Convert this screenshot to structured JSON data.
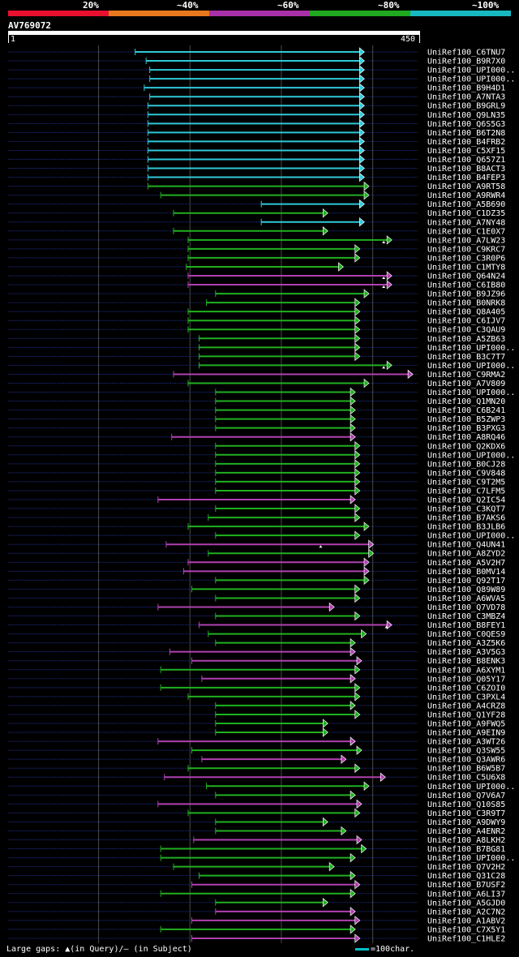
{
  "legend": [
    {
      "label": "20%",
      "color": "#e8102e"
    },
    {
      "label": "~40%",
      "color": "#e8781e"
    },
    {
      "label": "~60%",
      "color": "#a830a8"
    },
    {
      "label": "~80%",
      "color": "#20a820"
    },
    {
      "label": "~100%",
      "color": "#18b8c0"
    }
  ],
  "header": {
    "query": "AV769072",
    "start": "1",
    "end": "450"
  },
  "colors": {
    "cyan": "#30c8d8",
    "green": "#20b020",
    "purple": "#b040b0",
    "dots": "#203090",
    "grid": "#4a4a4a"
  },
  "chart_data": {
    "type": "alignment-map",
    "query": "AV769072",
    "query_range": [
      1,
      450
    ],
    "hits": [
      {
        "name": "UniRef100_C6TNU7",
        "start": 140,
        "end": 390,
        "c": "cyan"
      },
      {
        "name": "UniRef100_B9R7X0",
        "start": 152,
        "end": 390,
        "c": "cyan"
      },
      {
        "name": "UniRef100_UPI000..",
        "start": 156,
        "end": 390,
        "c": "cyan"
      },
      {
        "name": "UniRef100_UPI000..",
        "start": 156,
        "end": 390,
        "c": "cyan"
      },
      {
        "name": "UniRef100_B9H4D1",
        "start": 150,
        "end": 390,
        "c": "cyan"
      },
      {
        "name": "UniRef100_A7NTA3",
        "start": 156,
        "end": 390,
        "c": "cyan"
      },
      {
        "name": "UniRef100_B9GRL9",
        "start": 154,
        "end": 390,
        "c": "cyan"
      },
      {
        "name": "UniRef100_Q9LN35",
        "start": 154,
        "end": 390,
        "c": "cyan"
      },
      {
        "name": "UniRef100_Q6S5G3",
        "start": 154,
        "end": 390,
        "c": "cyan"
      },
      {
        "name": "UniRef100_B6T2N8",
        "start": 154,
        "end": 390,
        "c": "cyan"
      },
      {
        "name": "UniRef100_B4FRB2",
        "start": 154,
        "end": 390,
        "c": "cyan"
      },
      {
        "name": "UniRef100_C5XF15",
        "start": 154,
        "end": 390,
        "c": "cyan"
      },
      {
        "name": "UniRef100_Q657Z1",
        "start": 154,
        "end": 390,
        "c": "cyan"
      },
      {
        "name": "UniRef100_B8ACT3",
        "start": 154,
        "end": 390,
        "c": "cyan"
      },
      {
        "name": "UniRef100_B4FEP3",
        "start": 154,
        "end": 390,
        "c": "cyan"
      },
      {
        "name": "UniRef100_A9RT58",
        "start": 154,
        "end": 395,
        "c": "green"
      },
      {
        "name": "UniRef100_A9RWR4",
        "start": 168,
        "end": 395,
        "c": "green"
      },
      {
        "name": "UniRef100_A5B690",
        "start": 278,
        "end": 390,
        "c": "cyan"
      },
      {
        "name": "UniRef100_C1DZ35",
        "start": 182,
        "end": 350,
        "c": "green"
      },
      {
        "name": "UniRef100_A7NY48",
        "start": 278,
        "end": 390,
        "c": "cyan"
      },
      {
        "name": "UniRef100_C1E0X7",
        "start": 182,
        "end": 350,
        "c": "green"
      },
      {
        "name": "UniRef100_A7LW23",
        "start": 198,
        "end": 420,
        "c": "green",
        "gaps": [
          412
        ]
      },
      {
        "name": "UniRef100_C9KRC7",
        "start": 198,
        "end": 385,
        "c": "green"
      },
      {
        "name": "UniRef100_C3R0P6",
        "start": 198,
        "end": 385,
        "c": "green"
      },
      {
        "name": "UniRef100_C1MTY8",
        "start": 196,
        "end": 367,
        "c": "green"
      },
      {
        "name": "UniRef100_Q64N24",
        "start": 198,
        "end": 420,
        "c": "purple",
        "gaps": [
          412
        ]
      },
      {
        "name": "UniRef100_C6IB80",
        "start": 198,
        "end": 420,
        "c": "purple",
        "gaps": [
          412
        ]
      },
      {
        "name": "UniRef100_B9JZ96",
        "start": 228,
        "end": 395,
        "c": "green"
      },
      {
        "name": "UniRef100_B0NRK8",
        "start": 218,
        "end": 385,
        "c": "green"
      },
      {
        "name": "UniRef100_Q8A405",
        "start": 198,
        "end": 385,
        "c": "green"
      },
      {
        "name": "UniRef100_C6IJV7",
        "start": 198,
        "end": 385,
        "c": "green"
      },
      {
        "name": "UniRef100_C3QAU9",
        "start": 198,
        "end": 385,
        "c": "green"
      },
      {
        "name": "UniRef100_A5ZB63",
        "start": 210,
        "end": 385,
        "c": "green"
      },
      {
        "name": "UniRef100_UPI000..",
        "start": 210,
        "end": 385,
        "c": "green"
      },
      {
        "name": "UniRef100_B3C7T7",
        "start": 210,
        "end": 385,
        "c": "green"
      },
      {
        "name": "UniRef100_UPI000..",
        "start": 210,
        "end": 420,
        "c": "green",
        "gaps": [
          412
        ]
      },
      {
        "name": "UniRef100_C9RMA2",
        "start": 182,
        "end": 443,
        "c": "purple"
      },
      {
        "name": "UniRef100_A7V809",
        "start": 198,
        "end": 395,
        "c": "green"
      },
      {
        "name": "UniRef100_UPI000..",
        "start": 228,
        "end": 380,
        "c": "green"
      },
      {
        "name": "UniRef100_Q1MN20",
        "start": 228,
        "end": 380,
        "c": "green"
      },
      {
        "name": "UniRef100_C6B241",
        "start": 228,
        "end": 380,
        "c": "green"
      },
      {
        "name": "UniRef100_B5ZWP3",
        "start": 228,
        "end": 380,
        "c": "green"
      },
      {
        "name": "UniRef100_B3PXG3",
        "start": 228,
        "end": 380,
        "c": "green"
      },
      {
        "name": "UniRef100_A8RQ46",
        "start": 180,
        "end": 380,
        "c": "purple"
      },
      {
        "name": "UniRef100_Q2KDX6",
        "start": 228,
        "end": 385,
        "c": "green"
      },
      {
        "name": "UniRef100_UPI000..",
        "start": 228,
        "end": 385,
        "c": "green"
      },
      {
        "name": "UniRef100_B0CJ28",
        "start": 228,
        "end": 385,
        "c": "green"
      },
      {
        "name": "UniRef100_C9V848",
        "start": 228,
        "end": 385,
        "c": "green"
      },
      {
        "name": "UniRef100_C9T2M5",
        "start": 228,
        "end": 385,
        "c": "green"
      },
      {
        "name": "UniRef100_C7LFM5",
        "start": 228,
        "end": 385,
        "c": "green"
      },
      {
        "name": "UniRef100_Q2IC54",
        "start": 165,
        "end": 380,
        "c": "purple"
      },
      {
        "name": "UniRef100_C3KQT7",
        "start": 228,
        "end": 385,
        "c": "green"
      },
      {
        "name": "UniRef100_B7AKS6",
        "start": 220,
        "end": 385,
        "c": "green"
      },
      {
        "name": "UniRef100_B3JLB6",
        "start": 198,
        "end": 395,
        "c": "green"
      },
      {
        "name": "UniRef100_UPI000..",
        "start": 228,
        "end": 385,
        "c": "green"
      },
      {
        "name": "UniRef100_Q4UN41",
        "start": 174,
        "end": 400,
        "c": "purple",
        "gaps": [
          343
        ]
      },
      {
        "name": "UniRef100_A8ZYD2",
        "start": 220,
        "end": 400,
        "c": "green"
      },
      {
        "name": "UniRef100_A5V2H7",
        "start": 198,
        "end": 395,
        "c": "purple"
      },
      {
        "name": "UniRef100_B0MV14",
        "start": 193,
        "end": 395,
        "c": "purple"
      },
      {
        "name": "UniRef100_Q92T17",
        "start": 228,
        "end": 395,
        "c": "green"
      },
      {
        "name": "UniRef100_Q89W89",
        "start": 202,
        "end": 385,
        "c": "green"
      },
      {
        "name": "UniRef100_A6WVA5",
        "start": 228,
        "end": 385,
        "c": "green"
      },
      {
        "name": "UniRef100_Q7VD78",
        "start": 165,
        "end": 357,
        "c": "purple"
      },
      {
        "name": "UniRef100_C3MBZ4",
        "start": 228,
        "end": 385,
        "c": "green"
      },
      {
        "name": "UniRef100_B8FEY1",
        "start": 210,
        "end": 420,
        "c": "purple",
        "gaps": [
          415
        ]
      },
      {
        "name": "UniRef100_C0QES9",
        "start": 220,
        "end": 392,
        "c": "green"
      },
      {
        "name": "UniRef100_A3Z5K6",
        "start": 228,
        "end": 380,
        "c": "green"
      },
      {
        "name": "UniRef100_A3V5G3",
        "start": 178,
        "end": 380,
        "c": "purple"
      },
      {
        "name": "UniRef100_B8ENK3",
        "start": 202,
        "end": 387,
        "c": "purple"
      },
      {
        "name": "UniRef100_A6XYM1",
        "start": 168,
        "end": 385,
        "c": "green"
      },
      {
        "name": "UniRef100_Q05Y17",
        "start": 213,
        "end": 380,
        "c": "purple"
      },
      {
        "name": "UniRef100_C6ZOI0",
        "start": 168,
        "end": 385,
        "c": "green"
      },
      {
        "name": "UniRef100_C3PXL4",
        "start": 198,
        "end": 385,
        "c": "green"
      },
      {
        "name": "UniRef100_A4CRZ8",
        "start": 228,
        "end": 380,
        "c": "green"
      },
      {
        "name": "UniRef100_Q1YF28",
        "start": 228,
        "end": 385,
        "c": "green"
      },
      {
        "name": "UniRef100_A9FWQ5",
        "start": 228,
        "end": 350,
        "c": "green"
      },
      {
        "name": "UniRef100_A9EIN9",
        "start": 228,
        "end": 350,
        "c": "green"
      },
      {
        "name": "UniRef100_A3WT26",
        "start": 165,
        "end": 380,
        "c": "purple"
      },
      {
        "name": "UniRef100_Q3SW55",
        "start": 202,
        "end": 387,
        "c": "green"
      },
      {
        "name": "UniRef100_Q3AWR6",
        "start": 213,
        "end": 370,
        "c": "purple"
      },
      {
        "name": "UniRef100_B6W5B7",
        "start": 198,
        "end": 385,
        "c": "green"
      },
      {
        "name": "UniRef100_C5U6X8",
        "start": 172,
        "end": 413,
        "c": "purple"
      },
      {
        "name": "UniRef100_UPI000..",
        "start": 218,
        "end": 395,
        "c": "green"
      },
      {
        "name": "UniRef100_Q7V6A7",
        "start": 228,
        "end": 380,
        "c": "green"
      },
      {
        "name": "UniRef100_Q10S85",
        "start": 165,
        "end": 387,
        "c": "purple"
      },
      {
        "name": "UniRef100_C3R9T7",
        "start": 198,
        "end": 385,
        "c": "green"
      },
      {
        "name": "UniRef100_A9DWY9",
        "start": 228,
        "end": 350,
        "c": "green"
      },
      {
        "name": "UniRef100_A4ENR2",
        "start": 228,
        "end": 370,
        "c": "green"
      },
      {
        "name": "UniRef100_A8LKH2",
        "start": 204,
        "end": 387,
        "c": "purple"
      },
      {
        "name": "UniRef100_B7BG81",
        "start": 168,
        "end": 392,
        "c": "green"
      },
      {
        "name": "UniRef100_UPI000..",
        "start": 168,
        "end": 380,
        "c": "green"
      },
      {
        "name": "UniRef100_Q7V2H2",
        "start": 182,
        "end": 357,
        "c": "green"
      },
      {
        "name": "UniRef100_Q31C28",
        "start": 210,
        "end": 380,
        "c": "green"
      },
      {
        "name": "UniRef100_B7USF2",
        "start": 202,
        "end": 385,
        "c": "purple"
      },
      {
        "name": "UniRef100_A6LI37",
        "start": 168,
        "end": 380,
        "c": "green"
      },
      {
        "name": "UniRef100_A5GJD0",
        "start": 228,
        "end": 350,
        "c": "green"
      },
      {
        "name": "UniRef100_A2C7N2",
        "start": 228,
        "end": 380,
        "c": "purple"
      },
      {
        "name": "UniRef100_A1ABV2",
        "start": 202,
        "end": 385,
        "c": "purple"
      },
      {
        "name": "UniRef100_C7X5Y1",
        "start": 168,
        "end": 380,
        "c": "green"
      },
      {
        "name": "UniRef100_C1HLE2",
        "start": 202,
        "end": 385,
        "c": "purple"
      }
    ]
  },
  "footer": {
    "text": "Large gaps: ▲(in Query)/– (in Subject)",
    "scale": "=100char."
  }
}
